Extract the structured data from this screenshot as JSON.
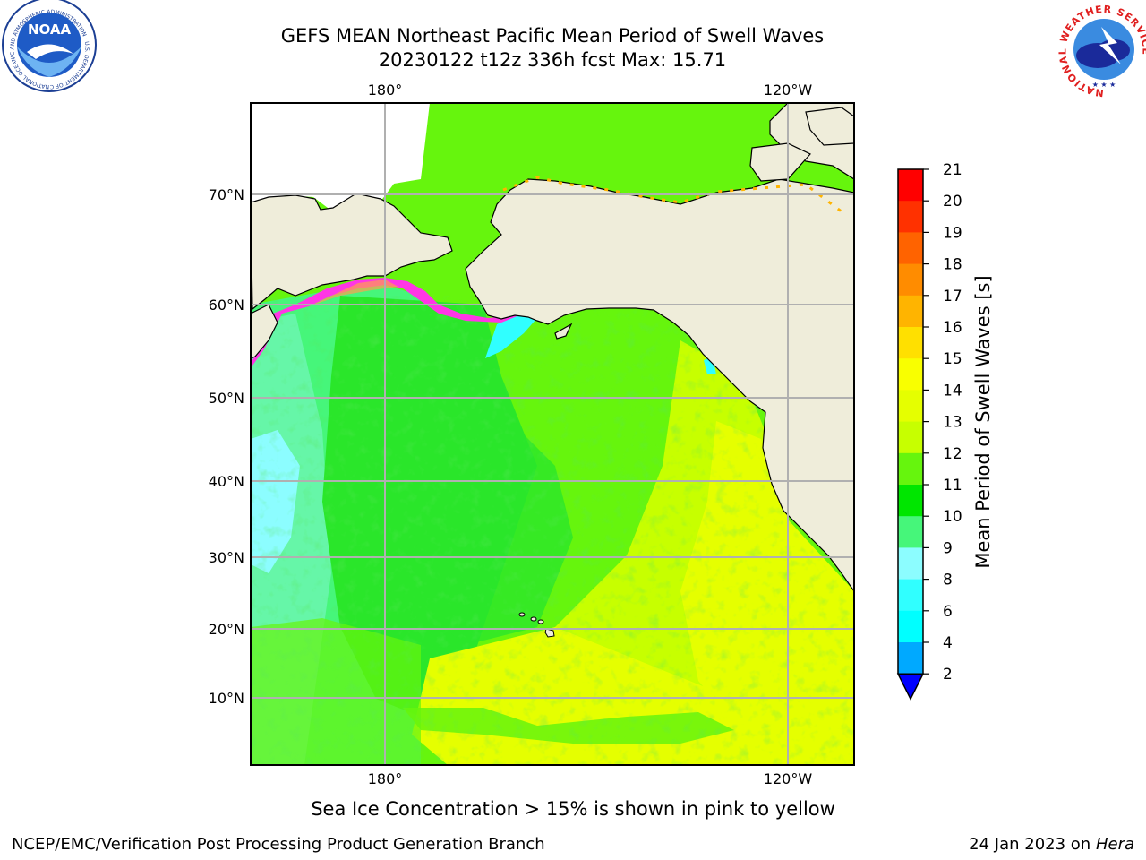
{
  "header": {
    "title_line1": "GEFS MEAN Northeast Pacific Mean Period of Swell Waves",
    "title_line2": "20230122 t12z 336h fcst   Max: 15.71"
  },
  "logos": {
    "left": {
      "name": "NOAA",
      "ring_text": "NATIONAL OCEANIC AND ATMOSPHERIC ADMINISTRATION · U.S. DEPARTMENT OF COMMERCE"
    },
    "right": {
      "ring_text": "NATIONAL WEATHER SERVICE"
    }
  },
  "map": {
    "lon_labels_top": [
      "180°",
      "120°W"
    ],
    "lon_labels_bottom": [
      "180°",
      "120°W"
    ],
    "lat_labels": [
      "70°N",
      "60°N",
      "50°N",
      "40°N",
      "30°N",
      "20°N",
      "10°N"
    ],
    "colors": {
      "land": "#efedda",
      "ocean_far_west": "#66f6a8",
      "ocean_west": "#46f67a",
      "ocean_central": "#2ae62a",
      "ocean_east": "#66f50d",
      "ocean_south_east": "#c7ff00",
      "ocean_south": "#e5ff00",
      "ice_pink": "#ff36e5",
      "ice_orange": "#ff9e50",
      "cyan_patch": "#30ffff",
      "light_cyan": "#8cfdff",
      "grid": "#b0b0b0"
    }
  },
  "colorbar": {
    "label": "Mean Period of Swell Waves [s]",
    "ticks": [
      "21",
      "20",
      "19",
      "18",
      "17",
      "16",
      "15",
      "14",
      "13",
      "12",
      "11",
      "10",
      "9",
      "8",
      "6",
      "4",
      "2"
    ],
    "colors": [
      "#ff0000",
      "#ff3100",
      "#ff6300",
      "#ff8c00",
      "#ffb400",
      "#ffe000",
      "#f9ff00",
      "#e5ff00",
      "#c7ff00",
      "#66f50d",
      "#00e600",
      "#46f67a",
      "#8cfdff",
      "#30ffff",
      "#00ffff",
      "#00a9ff",
      "#0066ff"
    ],
    "extend_color": "#0000ff"
  },
  "note": "Sea Ice Concentration > 15% is shown in pink to yellow",
  "footer": {
    "left": "NCEP/EMC/Verification Post Processing Product Generation Branch",
    "right_prefix": "24 Jan 2023 on ",
    "right_host": "Hera"
  }
}
